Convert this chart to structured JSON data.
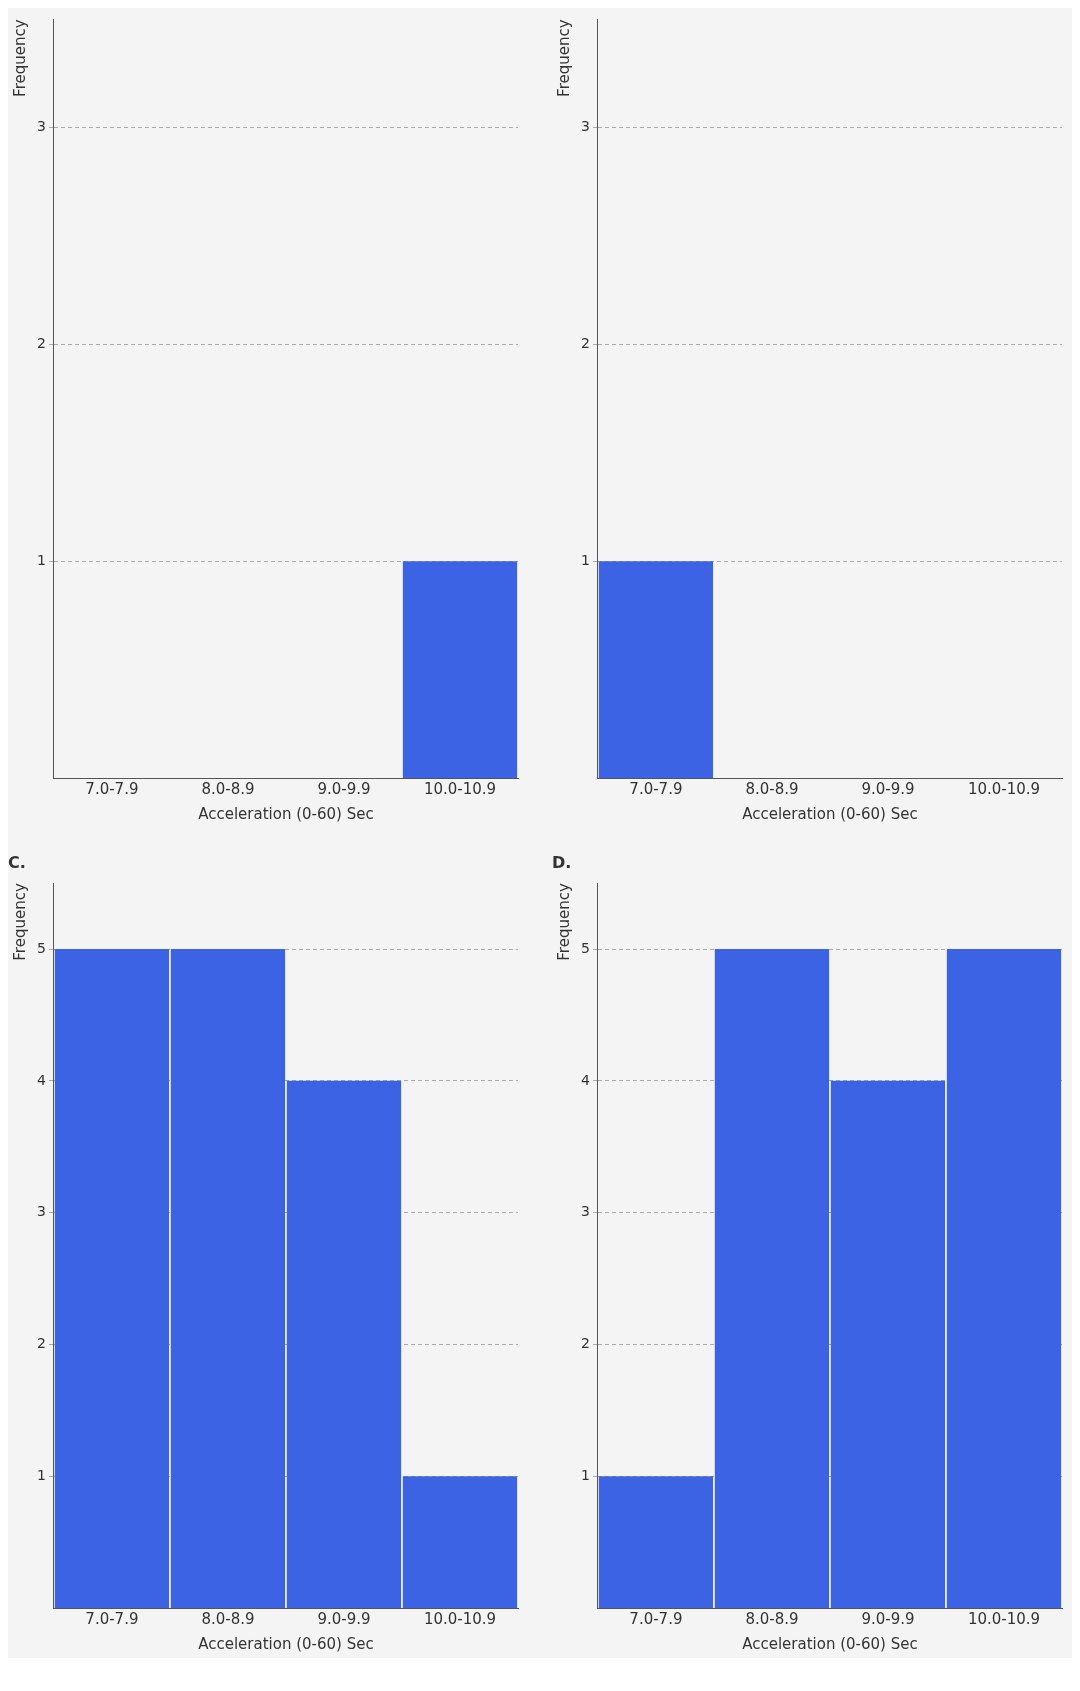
{
  "chart_data": [
    {
      "type": "bar",
      "xlabel": "Acceleration (0-60) Sec",
      "ylabel": "Frequency",
      "categories": [
        "7.0-7.9",
        "8.0-8.9",
        "9.0-9.9",
        "10.0-10.9"
      ],
      "values": [
        null,
        null,
        null,
        1
      ],
      "color": "#3b63e3",
      "ylim": [
        0,
        3.5
      ],
      "yticks": [
        1,
        2,
        3
      ],
      "grid": "y"
    },
    {
      "type": "bar",
      "xlabel": "Acceleration (0-60) Sec",
      "ylabel": "Frequency",
      "categories": [
        "7.0-7.9",
        "8.0-8.9",
        "9.0-9.9",
        "10.0-10.9"
      ],
      "values": [
        1,
        null,
        null,
        null
      ],
      "color": "#3b63e3",
      "ylim": [
        0,
        3.5
      ],
      "yticks": [
        1,
        2,
        3
      ],
      "grid": "y"
    },
    {
      "type": "bar",
      "title": "C.",
      "xlabel": "Acceleration (0-60) Sec",
      "ylabel": "Frequency",
      "categories": [
        "7.0-7.9",
        "8.0-8.9",
        "9.0-9.9",
        "10.0-10.9"
      ],
      "values": [
        5,
        5,
        4,
        1
      ],
      "color": "#3b63e3",
      "ylim": [
        0,
        5.5
      ],
      "yticks": [
        1,
        2,
        3,
        4,
        5
      ],
      "grid": "y"
    },
    {
      "type": "bar",
      "title": "D.",
      "xlabel": "Acceleration (0-60) Sec",
      "ylabel": "Frequency",
      "categories": [
        "7.0-7.9",
        "8.0-8.9",
        "9.0-9.9",
        "10.0-10.9"
      ],
      "values": [
        1,
        5,
        4,
        5
      ],
      "color": "#3b63e3",
      "ylim": [
        0,
        5.5
      ],
      "yticks": [
        1,
        2,
        3,
        4,
        5
      ],
      "grid": "y"
    }
  ]
}
